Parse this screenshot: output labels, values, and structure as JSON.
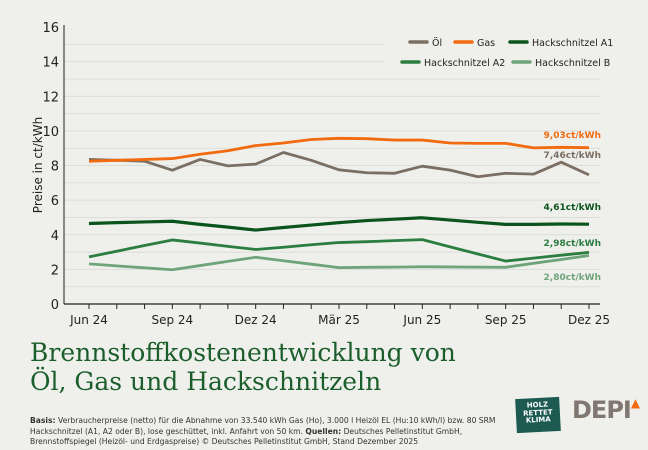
{
  "chart_data": {
    "type": "line",
    "ylabel": "Preise in ct/kWh",
    "xlabel": "",
    "ylim": [
      0,
      16
    ],
    "yticks": [
      "0",
      "2",
      "4",
      "6",
      "8",
      "10",
      "12",
      "14",
      "16"
    ],
    "grid": true,
    "legend": "top-right",
    "x": [
      "Jun 24",
      "Jul 24",
      "Aug 24",
      "Sep 24",
      "Okt 24",
      "Nov 24",
      "Dez 24",
      "Jan 25",
      "Feb 25",
      "Mär 25",
      "Apr 25",
      "Mai 25",
      "Jun 25",
      "Jul 25",
      "Aug 25",
      "Sep 25",
      "Okt 25",
      "Nov 25",
      "Dez 25"
    ],
    "xtick_labels": [
      "Jun 24",
      "Sep 24",
      "Dez 24",
      "Mär 25",
      "Jun 25",
      "Sep 25",
      "Dez 25"
    ],
    "series": [
      {
        "name": "Öl",
        "color": "#7b6f63",
        "end_label": "7,46ct/kWh",
        "values": [
          8.35,
          8.3,
          8.25,
          7.73,
          8.35,
          7.98,
          8.08,
          8.75,
          8.3,
          7.75,
          7.58,
          7.55,
          7.96,
          7.73,
          7.35,
          7.55,
          7.5,
          8.19,
          7.46
        ]
      },
      {
        "name": "Gas",
        "color": "#f26a10",
        "end_label": "9,03ct/kWh",
        "values": [
          8.25,
          8.3,
          8.35,
          8.4,
          8.65,
          8.85,
          9.15,
          9.3,
          9.5,
          9.57,
          9.55,
          9.47,
          9.47,
          9.3,
          9.28,
          9.28,
          9.02,
          9.05,
          9.03
        ]
      },
      {
        "name": "Hackschnitzel A1",
        "color": "#0b551d",
        "end_label": "4,61ct/kWh",
        "values": [
          4.65,
          4.7,
          4.74,
          4.78,
          4.6,
          4.44,
          4.27,
          4.42,
          4.56,
          4.7,
          4.82,
          4.9,
          4.98,
          4.85,
          4.72,
          4.6,
          4.6,
          4.62,
          4.61
        ]
      },
      {
        "name": "Hackschnitzel A2",
        "color": "#2b7d40",
        "end_label": "2,98ct/kWh",
        "values": [
          2.72,
          3.05,
          3.38,
          3.7,
          3.52,
          3.33,
          3.15,
          3.28,
          3.42,
          3.55,
          3.6,
          3.66,
          3.72,
          3.3,
          2.89,
          2.48,
          2.65,
          2.82,
          2.98
        ]
      },
      {
        "name": "Hackschnitzel B",
        "color": "#6fa47b",
        "end_label": "2,80ct/kWh",
        "values": [
          2.32,
          2.2,
          2.09,
          1.98,
          2.22,
          2.46,
          2.7,
          2.5,
          2.3,
          2.1,
          2.12,
          2.13,
          2.15,
          2.14,
          2.13,
          2.12,
          2.35,
          2.57,
          2.8
        ]
      }
    ]
  },
  "title_line1": "Brennstoffkostenentwicklung von",
  "title_line2": "Öl, Gas und Hackschnitzeln",
  "note": {
    "basis_label": "Basis:",
    "basis_text": " Verbraucherpreise (netto) für die Abnahme von 33.540 kWh Gas (Ho), 3.000 l Heizöl EL (Hu:10 kWh/l) bzw. 80 SRM Hackschnitzel (A1, A2 oder B), lose geschüttet, inkl. Anfahrt von 50 km. ",
    "sources_label": "Quellen:",
    "sources_text": " Deutsches Pelletinstitut GmbH, Brennstoffspiegel (Heizöl- und Erdgaspreise) © Deutsches Pelletinstitut GmbH, Stand Dezember 2025"
  },
  "logos": {
    "holz": "HOLZ RETTET KLIMA",
    "depi": "DEPI"
  }
}
